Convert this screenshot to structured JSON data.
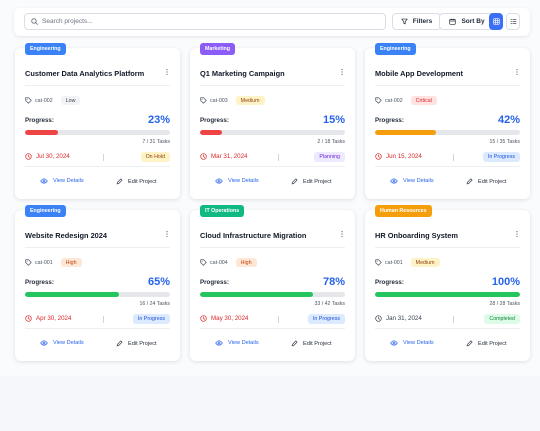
{
  "toolbar": {
    "search_placeholder": "Search projects...",
    "filters_label": "Filters",
    "sort_label": "Sort By",
    "accent_color": "#3b6ff5"
  },
  "card_actions": {
    "view_label": "View Details",
    "edit_label": "Edit Project"
  },
  "progress_label": "Progress:",
  "projects": [
    {
      "category": "Engineering",
      "category_color": "#3b82f6",
      "title": "Customer Data Analytics Platform",
      "cat_id": "cat-002",
      "priority": "Low",
      "progress_text": "23%",
      "progress": 23,
      "progress_color": "#ef4444",
      "tasks": "7 / 31 Tasks",
      "date": "Jul 30, 2024",
      "date_overdue": true,
      "status": "On Hold"
    },
    {
      "category": "Marketing",
      "category_color": "#8b5cf6",
      "title": "Q1 Marketing Campaign",
      "cat_id": "cat-003",
      "priority": "Medium",
      "progress_text": "15%",
      "progress": 15,
      "progress_color": "#ef4444",
      "tasks": "2 / 18 Tasks",
      "date": "Mar 31, 2024",
      "date_overdue": true,
      "status": "Planning"
    },
    {
      "category": "Engineering",
      "category_color": "#3b82f6",
      "title": "Mobile App Development",
      "cat_id": "cat-002",
      "priority": "Critical",
      "progress_text": "42%",
      "progress": 42,
      "progress_color": "#f59e0b",
      "tasks": "15 / 35 Tasks",
      "date": "Jun 15, 2024",
      "date_overdue": true,
      "status": "In Progress"
    },
    {
      "category": "Engineering",
      "category_color": "#3b82f6",
      "title": "Website Redesign 2024",
      "cat_id": "cat-001",
      "priority": "High",
      "progress_text": "65%",
      "progress": 65,
      "progress_color": "#22c55e",
      "tasks": "16 / 24 Tasks",
      "date": "Apr 30, 2024",
      "date_overdue": true,
      "status": "In Progress"
    },
    {
      "category": "IT Operations",
      "category_color": "#10b981",
      "title": "Cloud Infrastructure Migration",
      "cat_id": "cat-004",
      "priority": "High",
      "progress_text": "78%",
      "progress": 78,
      "progress_color": "#22c55e",
      "tasks": "33 / 42 Tasks",
      "date": "May 30, 2024",
      "date_overdue": true,
      "status": "In Progress"
    },
    {
      "category": "Human Resources",
      "category_color": "#f59e0b",
      "title": "HR Onboarding System",
      "cat_id": "cat-001",
      "priority": "Medium",
      "progress_text": "100%",
      "progress": 100,
      "progress_color": "#22c55e",
      "tasks": "28 / 28 Tasks",
      "date": "Jan 31, 2024",
      "date_overdue": false,
      "status": "Completed"
    }
  ]
}
